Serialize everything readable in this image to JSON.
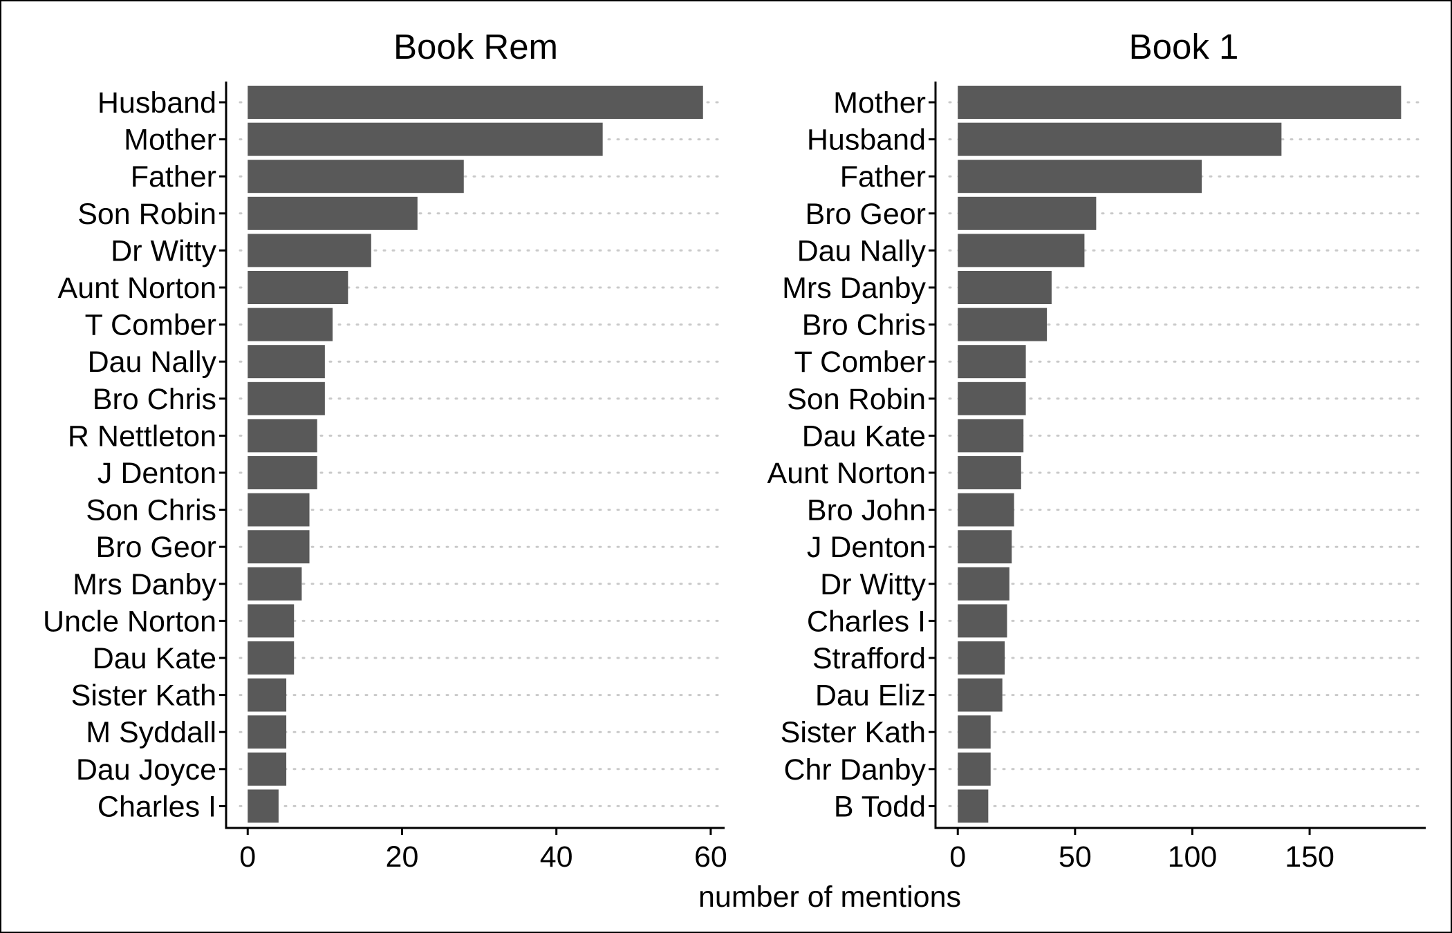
{
  "chart_data": {
    "type": "bar",
    "orientation": "horizontal",
    "xlabel": "number of mentions",
    "bar_color": "#595959",
    "grid_color": "#c9c9c9",
    "grid": "major-y-dotted",
    "panels": [
      {
        "title": "Book Rem",
        "categories": [
          "Husband",
          "Mother",
          "Father",
          "Son Robin",
          "Dr Witty",
          "Aunt Norton",
          "T Comber",
          "Dau Nally",
          "Bro Chris",
          "R Nettleton",
          "J Denton",
          "Son Chris",
          "Bro Geor",
          "Mrs Danby",
          "Uncle Norton",
          "Dau Kate",
          "Sister Kath",
          "M Syddall",
          "Dau Joyce",
          "Charles I"
        ],
        "values": [
          59,
          46,
          28,
          22,
          16,
          13,
          11,
          10,
          10,
          9,
          9,
          8,
          8,
          7,
          6,
          6,
          5,
          5,
          5,
          4
        ],
        "xlim": [
          -2.8,
          61.8
        ],
        "xticks": [
          0,
          20,
          40,
          60
        ]
      },
      {
        "title": "Book 1",
        "categories": [
          "Mother",
          "Husband",
          "Father",
          "Bro Geor",
          "Dau Nally",
          "Mrs Danby",
          "Bro Chris",
          "T Comber",
          "Son Robin",
          "Dau Kate",
          "Aunt Norton",
          "Bro John",
          "J Denton",
          "Dr Witty",
          "Charles I",
          "Strafford",
          "Dau Eliz",
          "Sister Kath",
          "Chr Danby",
          "B Todd"
        ],
        "values": [
          189,
          138,
          104,
          59,
          54,
          40,
          38,
          29,
          29,
          28,
          27,
          24,
          23,
          22,
          21,
          20,
          19,
          14,
          14,
          13
        ],
        "xlim": [
          -9.5,
          199.5
        ],
        "xticks": [
          0,
          50,
          100,
          150
        ]
      }
    ]
  }
}
